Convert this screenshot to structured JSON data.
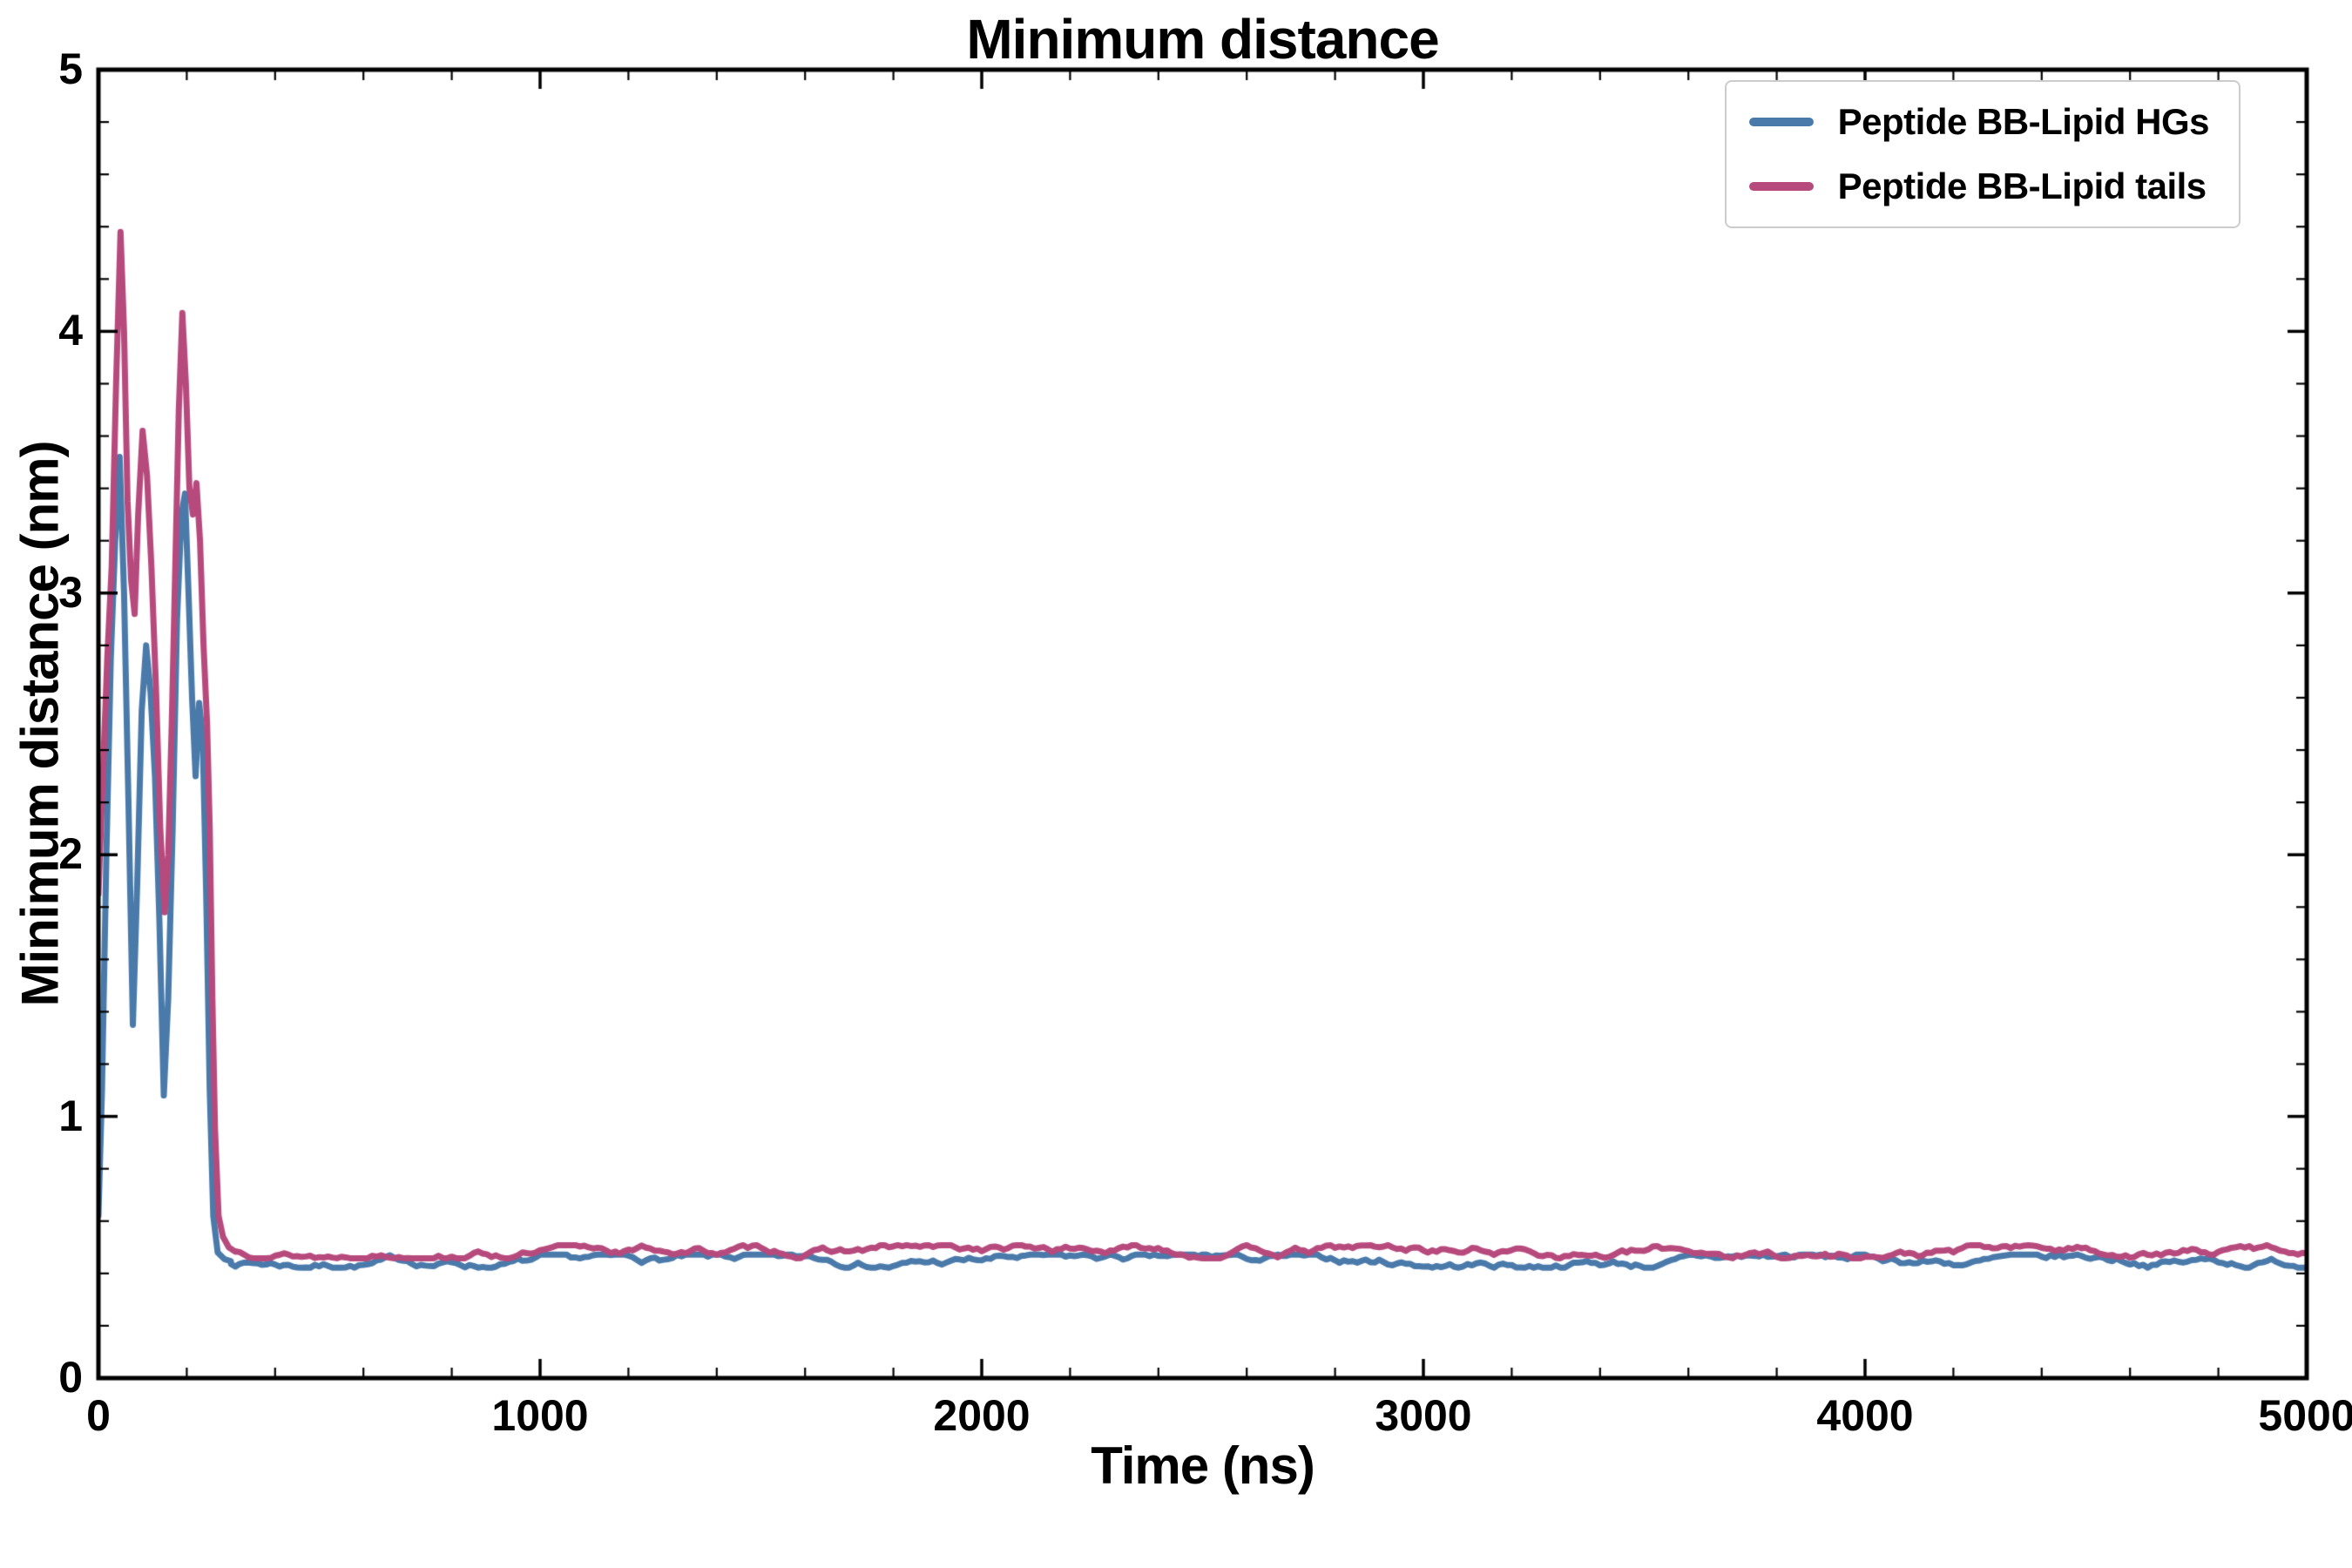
{
  "chart_data": {
    "type": "line",
    "title": "Minimum distance",
    "xlabel": "Time (ns)",
    "ylabel": "Minimum distance (nm)",
    "xlim": [
      0,
      5000
    ],
    "ylim": [
      0,
      5
    ],
    "xticks": [
      0,
      1000,
      2000,
      3000,
      4000,
      5000
    ],
    "yticks": [
      0,
      1,
      2,
      3,
      4,
      5
    ],
    "x_major_step": 1000,
    "y_major_step": 1,
    "x_minor_step": 200,
    "y_minor_step": 0.2,
    "grid": false,
    "legend_position": "upper right",
    "axis_color": "#000000",
    "series": [
      {
        "name": "Peptide BB-Lipid HGs",
        "color": "#4a7aaa",
        "line_width": 7,
        "transient_points": [
          [
            0,
            0.62
          ],
          [
            8,
            1.1
          ],
          [
            18,
            2.0
          ],
          [
            28,
            2.75
          ],
          [
            38,
            3.2
          ],
          [
            48,
            3.52
          ],
          [
            58,
            3.0
          ],
          [
            68,
            2.2
          ],
          [
            78,
            1.35
          ],
          [
            88,
            1.9
          ],
          [
            98,
            2.55
          ],
          [
            108,
            2.8
          ],
          [
            118,
            2.62
          ],
          [
            128,
            2.3
          ],
          [
            138,
            1.75
          ],
          [
            148,
            1.08
          ],
          [
            158,
            1.45
          ],
          [
            168,
            2.1
          ],
          [
            178,
            2.9
          ],
          [
            188,
            3.3
          ],
          [
            196,
            3.38
          ],
          [
            204,
            3.0
          ],
          [
            212,
            2.6
          ],
          [
            220,
            2.3
          ],
          [
            228,
            2.58
          ],
          [
            236,
            2.45
          ],
          [
            244,
            1.85
          ],
          [
            252,
            1.1
          ],
          [
            260,
            0.62
          ],
          [
            270,
            0.48
          ],
          [
            285,
            0.455
          ],
          [
            300,
            0.447
          ]
        ],
        "plateau": {
          "from": 300,
          "to": 5000,
          "step": 10,
          "mean": 0.447,
          "noise": 0.025,
          "seed": 7
        }
      },
      {
        "name": "Peptide BB-Lipid tails",
        "color": "#b74a7d",
        "line_width": 7,
        "transient_points": [
          [
            0,
            1.85
          ],
          [
            10,
            2.3
          ],
          [
            20,
            2.75
          ],
          [
            30,
            3.1
          ],
          [
            40,
            3.8
          ],
          [
            50,
            4.38
          ],
          [
            58,
            4.0
          ],
          [
            66,
            3.35
          ],
          [
            74,
            3.05
          ],
          [
            82,
            2.92
          ],
          [
            90,
            3.3
          ],
          [
            100,
            3.62
          ],
          [
            110,
            3.45
          ],
          [
            120,
            3.1
          ],
          [
            130,
            2.65
          ],
          [
            140,
            2.1
          ],
          [
            150,
            1.78
          ],
          [
            158,
            2.0
          ],
          [
            166,
            2.5
          ],
          [
            174,
            3.1
          ],
          [
            182,
            3.7
          ],
          [
            190,
            4.07
          ],
          [
            198,
            3.8
          ],
          [
            206,
            3.4
          ],
          [
            214,
            3.3
          ],
          [
            222,
            3.42
          ],
          [
            230,
            3.2
          ],
          [
            238,
            2.8
          ],
          [
            246,
            2.5
          ],
          [
            252,
            2.1
          ],
          [
            258,
            1.45
          ],
          [
            264,
            0.95
          ],
          [
            272,
            0.62
          ],
          [
            282,
            0.54
          ],
          [
            295,
            0.5
          ],
          [
            310,
            0.483
          ]
        ],
        "plateau": {
          "from": 310,
          "to": 5000,
          "step": 10,
          "mean": 0.483,
          "noise": 0.025,
          "seed": 13
        }
      }
    ]
  }
}
